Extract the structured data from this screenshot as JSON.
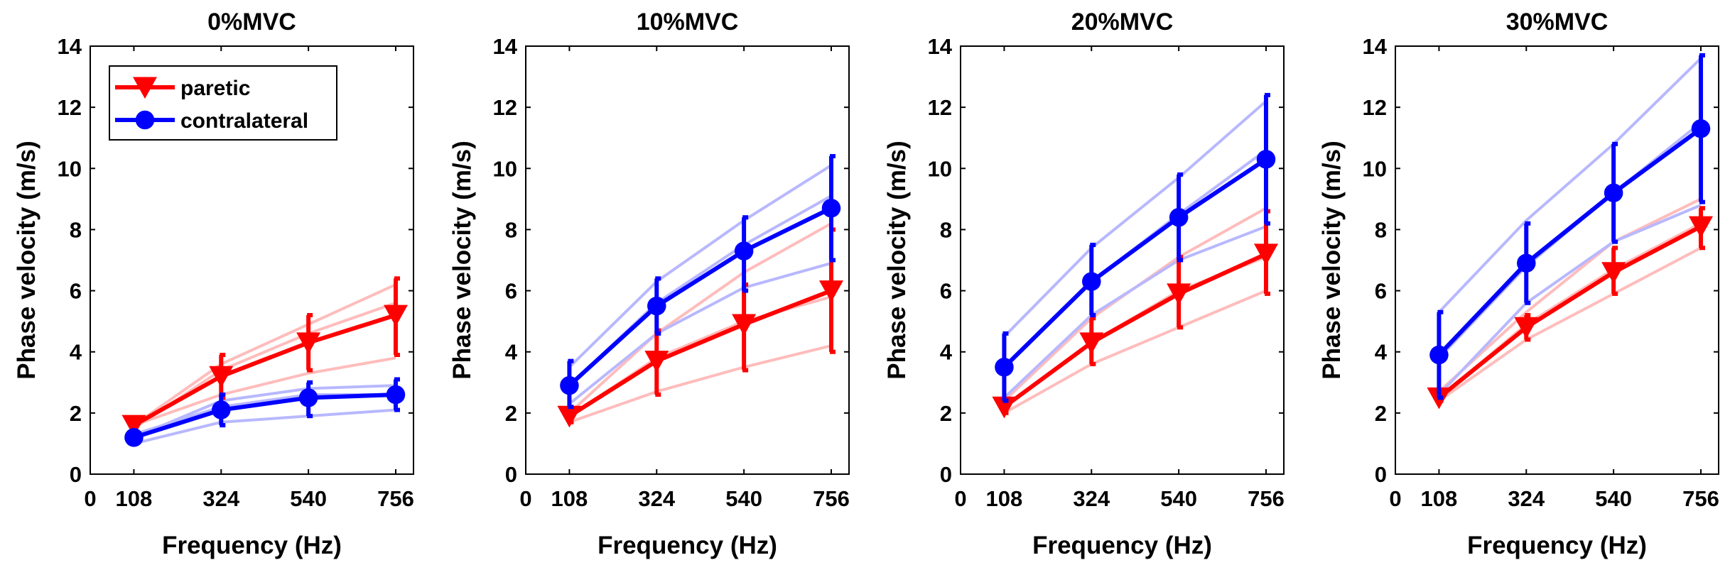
{
  "chart_data": [
    {
      "type": "line",
      "title": "0%MVC",
      "xlabel": "Frequency (Hz)",
      "ylabel": "Phase velocity (m/s)",
      "x": [
        108,
        324,
        540,
        756
      ],
      "xlim": [
        0,
        800
      ],
      "ylim": [
        0,
        14
      ],
      "xticks": [
        "0",
        "108",
        "324",
        "540",
        "756"
      ],
      "yticks": [
        "0",
        "2",
        "4",
        "6",
        "8",
        "10",
        "12",
        "14"
      ],
      "legend": {
        "placement": "top-left",
        "entries": [
          "paretic",
          "contralateral"
        ]
      },
      "series": [
        {
          "name": "paretic",
          "color": "#ff0000",
          "marker": "triangle-down",
          "values": [
            1.6,
            3.2,
            4.3,
            5.2
          ],
          "err_lower": [
            1.5,
            2.5,
            3.4,
            3.9
          ],
          "err_upper": [
            1.8,
            3.9,
            5.2,
            6.4
          ],
          "subjects": [
            [
              1.6,
              3.6,
              4.9,
              6.2
            ],
            [
              1.5,
              3.4,
              4.6,
              5.6
            ],
            [
              1.6,
              2.6,
              3.3,
              3.8
            ]
          ]
        },
        {
          "name": "contralateral",
          "color": "#0000ff",
          "marker": "circle",
          "values": [
            1.2,
            2.1,
            2.5,
            2.6
          ],
          "err_lower": [
            1.1,
            1.6,
            1.9,
            2.1
          ],
          "err_upper": [
            1.4,
            2.6,
            3.0,
            3.1
          ],
          "subjects": [
            [
              1.2,
              2.4,
              2.8,
              2.9
            ],
            [
              1.3,
              2.2,
              2.6,
              2.6
            ],
            [
              1.0,
              1.7,
              1.9,
              2.1
            ]
          ]
        }
      ]
    },
    {
      "type": "line",
      "title": "10%MVC",
      "xlabel": "Frequency (Hz)",
      "ylabel": "Phase velocity (m/s)",
      "x": [
        108,
        324,
        540,
        756
      ],
      "xlim": [
        0,
        800
      ],
      "ylim": [
        0,
        14
      ],
      "xticks": [
        "0",
        "108",
        "324",
        "540",
        "756"
      ],
      "yticks": [
        "0",
        "2",
        "4",
        "6",
        "8",
        "10",
        "12",
        "14"
      ],
      "series": [
        {
          "name": "paretic",
          "color": "#ff0000",
          "marker": "triangle-down",
          "values": [
            1.9,
            3.7,
            4.9,
            6.0
          ],
          "err_lower": [
            1.7,
            2.6,
            3.4,
            4.0
          ],
          "err_upper": [
            2.1,
            4.7,
            6.2,
            8.0
          ],
          "subjects": [
            [
              2.0,
              4.6,
              6.6,
              8.2
            ],
            [
              1.9,
              3.8,
              5.0,
              5.8
            ],
            [
              1.7,
              2.7,
              3.5,
              4.2
            ]
          ]
        },
        {
          "name": "contralateral",
          "color": "#0000ff",
          "marker": "circle",
          "values": [
            2.9,
            5.5,
            7.3,
            8.7
          ],
          "err_lower": [
            2.2,
            4.6,
            6.0,
            7.0
          ],
          "err_upper": [
            3.7,
            6.4,
            8.4,
            10.4
          ],
          "subjects": [
            [
              3.5,
              6.3,
              8.3,
              10.1
            ],
            [
              2.9,
              5.6,
              7.5,
              9.1
            ],
            [
              2.3,
              4.6,
              6.1,
              6.9
            ]
          ]
        }
      ]
    },
    {
      "type": "line",
      "title": "20%MVC",
      "xlabel": "Frequency (Hz)",
      "ylabel": "Phase velocity (m/s)",
      "x": [
        108,
        324,
        540,
        756
      ],
      "xlim": [
        0,
        800
      ],
      "ylim": [
        0,
        14
      ],
      "xticks": [
        "0",
        "108",
        "324",
        "540",
        "756"
      ],
      "yticks": [
        "0",
        "2",
        "4",
        "6",
        "8",
        "10",
        "12",
        "14"
      ],
      "series": [
        {
          "name": "paretic",
          "color": "#ff0000",
          "marker": "triangle-down",
          "values": [
            2.2,
            4.3,
            5.9,
            7.2
          ],
          "err_lower": [
            2.0,
            3.6,
            4.8,
            5.9
          ],
          "err_upper": [
            2.4,
            5.1,
            7.1,
            8.6
          ],
          "subjects": [
            [
              2.4,
              5.1,
              7.1,
              8.7
            ],
            [
              2.2,
              4.3,
              6.0,
              7.1
            ],
            [
              2.0,
              3.6,
              4.8,
              6.0
            ]
          ]
        },
        {
          "name": "contralateral",
          "color": "#0000ff",
          "marker": "circle",
          "values": [
            3.5,
            6.3,
            8.4,
            10.3
          ],
          "err_lower": [
            2.4,
            5.2,
            7.0,
            8.2
          ],
          "err_upper": [
            4.6,
            7.5,
            9.8,
            12.4
          ],
          "subjects": [
            [
              4.5,
              7.4,
              9.7,
              12.2
            ],
            [
              3.5,
              6.3,
              8.5,
              10.6
            ],
            [
              2.5,
              5.2,
              7.0,
              8.1
            ]
          ]
        }
      ]
    },
    {
      "type": "line",
      "title": "30%MVC",
      "xlabel": "Frequency (Hz)",
      "ylabel": "Phase velocity (m/s)",
      "x": [
        108,
        324,
        540,
        756
      ],
      "xlim": [
        0,
        800
      ],
      "ylim": [
        0,
        14
      ],
      "xticks": [
        "0",
        "108",
        "324",
        "540",
        "756"
      ],
      "yticks": [
        "0",
        "2",
        "4",
        "6",
        "8",
        "10",
        "12",
        "14"
      ],
      "series": [
        {
          "name": "paretic",
          "color": "#ff0000",
          "marker": "triangle-down",
          "values": [
            2.5,
            4.8,
            6.6,
            8.1
          ],
          "err_lower": [
            2.4,
            4.4,
            5.9,
            7.4
          ],
          "err_upper": [
            2.7,
            5.2,
            7.4,
            8.7
          ],
          "subjects": [
            [
              2.7,
              5.3,
              7.6,
              9.0
            ],
            [
              2.5,
              4.9,
              6.7,
              8.2
            ],
            [
              2.4,
              4.4,
              5.9,
              7.4
            ]
          ]
        },
        {
          "name": "contralateral",
          "color": "#0000ff",
          "marker": "circle",
          "values": [
            3.9,
            6.9,
            9.2,
            11.3
          ],
          "err_lower": [
            2.5,
            5.6,
            7.6,
            8.9
          ],
          "err_upper": [
            5.3,
            8.2,
            10.8,
            13.7
          ],
          "subjects": [
            [
              5.3,
              8.3,
              10.8,
              13.6
            ],
            [
              3.8,
              6.8,
              9.2,
              11.5
            ],
            [
              2.6,
              5.6,
              7.6,
              8.8
            ]
          ]
        }
      ]
    }
  ]
}
